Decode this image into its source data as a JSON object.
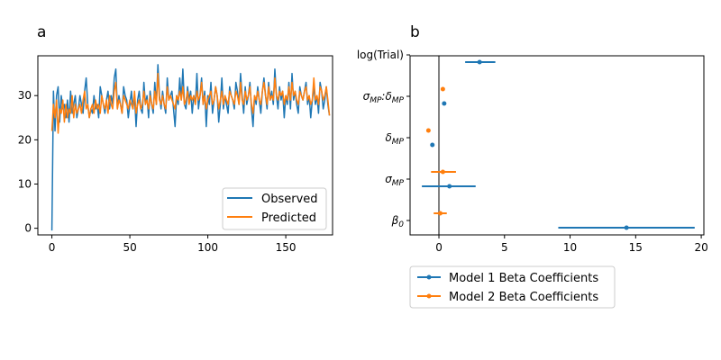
{
  "chart_data": [
    {
      "panel": "a",
      "type": "line",
      "title": "",
      "xlabel": "",
      "ylabel": "",
      "xlim": [
        -9,
        180
      ],
      "ylim": [
        -1.5,
        39
      ],
      "xticks": [
        0,
        50,
        100,
        150
      ],
      "yticks": [
        0,
        10,
        20,
        30
      ],
      "legend": {
        "position": "lower-right",
        "entries": [
          "Observed",
          "Predicted"
        ]
      },
      "series": [
        {
          "name": "Observed",
          "color": "#1f77b4",
          "x_start": 0,
          "values": [
            -0.5,
            31,
            22,
            30,
            32,
            24,
            30,
            27,
            28,
            25,
            29,
            24,
            31,
            26,
            28,
            30,
            25,
            27,
            30,
            28,
            26,
            31,
            34,
            28,
            25,
            27,
            26,
            30,
            27,
            28,
            25,
            32,
            30,
            28,
            26,
            29,
            31,
            27,
            30,
            28,
            34,
            36,
            27,
            30,
            28,
            26,
            32,
            30,
            29,
            25,
            28,
            31,
            27,
            30,
            23,
            29,
            31,
            27,
            26,
            33,
            28,
            30,
            25,
            31,
            28,
            26,
            33,
            28,
            37,
            30,
            27,
            31,
            28,
            26,
            34,
            29,
            30,
            31,
            27,
            23,
            30,
            28,
            34,
            29,
            36,
            28,
            27,
            32,
            29,
            31,
            26,
            30,
            28,
            35,
            27,
            30,
            34,
            28,
            31,
            23,
            30,
            28,
            33,
            26,
            29,
            32,
            30,
            24,
            28,
            34,
            27,
            30,
            28,
            26,
            32,
            30,
            29,
            27,
            33,
            31,
            28,
            35,
            30,
            26,
            32,
            28,
            30,
            33,
            27,
            23,
            30,
            28,
            32,
            29,
            26,
            31,
            34,
            30,
            27,
            33,
            29,
            31,
            28,
            36,
            30,
            27,
            32,
            29,
            31,
            25,
            30,
            28,
            33,
            27,
            35,
            29,
            31,
            28,
            26,
            32,
            30,
            29,
            31,
            33,
            28,
            30,
            25,
            29,
            32,
            28,
            30,
            26,
            33,
            31,
            27,
            29,
            32,
            28,
            25.5
          ]
        },
        {
          "name": "Predicted",
          "color": "#ff7f0e",
          "x_start": 0,
          "values": [
            22,
            28,
            25,
            29,
            21.5,
            27,
            26,
            29,
            24,
            28,
            25,
            27,
            26,
            30,
            25,
            28,
            26,
            27,
            28,
            26,
            29,
            31,
            27,
            28,
            25,
            27,
            28,
            26,
            29,
            27,
            28,
            26,
            30,
            28,
            27,
            29,
            26,
            30,
            28,
            27,
            31,
            33,
            27,
            29,
            28,
            26,
            30,
            29,
            28,
            27,
            29,
            28,
            27,
            31,
            26,
            28,
            29,
            27,
            28,
            31,
            28,
            29,
            27,
            30,
            28,
            27,
            31,
            28,
            35,
            29,
            28,
            30,
            28,
            27,
            32,
            29,
            30,
            29,
            28,
            27,
            30,
            29,
            31,
            29,
            32,
            28,
            29,
            31,
            28,
            30,
            29,
            30,
            28,
            31,
            29,
            30,
            33,
            28,
            30,
            27,
            29,
            30,
            31,
            28,
            29,
            32,
            30,
            27,
            29,
            31,
            28,
            30,
            29,
            28,
            31,
            30,
            29,
            28,
            31,
            30,
            28,
            33,
            29,
            28,
            31,
            29,
            30,
            32,
            28,
            26,
            30,
            29,
            31,
            29,
            28,
            31,
            33,
            30,
            28,
            32,
            29,
            30,
            29,
            34,
            30,
            29,
            31,
            30,
            31,
            28,
            30,
            29,
            32,
            29,
            33,
            30,
            31,
            29,
            28,
            31,
            30,
            29,
            31,
            32,
            29,
            30,
            28,
            29,
            34,
            29,
            30,
            28,
            32,
            31,
            29,
            30,
            32,
            29,
            25.5
          ]
        }
      ]
    },
    {
      "panel": "b",
      "type": "scatter",
      "subtype": "coefficient-plot",
      "title": "",
      "xlabel": "",
      "ylabel": "",
      "xlim": [
        -2.2,
        20.2
      ],
      "xticks": [
        0,
        5,
        10,
        15,
        20
      ],
      "categories": [
        "β0",
        "σMP",
        "δMP",
        "σMP:δMP",
        "log(Trial)"
      ],
      "reference_line_x": 0,
      "legend": {
        "position": "below",
        "entries": [
          "Model 1 Beta Coefficients",
          "Model 2 Beta Coefficients"
        ]
      },
      "series": [
        {
          "name": "Model 1 Beta Coefficients",
          "color": "#1f77b4",
          "points": [
            {
              "category": "β0",
              "estimate": 14.3,
              "ci": [
                9.1,
                19.5
              ]
            },
            {
              "category": "σMP",
              "estimate": 0.8,
              "ci": [
                -1.3,
                2.8
              ]
            },
            {
              "category": "δMP",
              "estimate": -0.5,
              "ci": [
                -0.6,
                -0.35
              ]
            },
            {
              "category": "σMP:δMP",
              "estimate": 0.4,
              "ci": [
                0.25,
                0.55
              ]
            },
            {
              "category": "log(Trial)",
              "estimate": 3.1,
              "ci": [
                2.0,
                4.3
              ]
            }
          ]
        },
        {
          "name": "Model 2 Beta Coefficients",
          "color": "#ff7f0e",
          "points": [
            {
              "category": "β0",
              "estimate": 0.1,
              "ci": [
                -0.4,
                0.6
              ]
            },
            {
              "category": "σMP",
              "estimate": 0.3,
              "ci": [
                -0.6,
                1.3
              ]
            },
            {
              "category": "δMP",
              "estimate": -0.8,
              "ci": [
                -0.85,
                -0.75
              ]
            },
            {
              "category": "σMP:δMP",
              "estimate": 0.3,
              "ci": [
                0.25,
                0.35
              ]
            },
            {
              "category": "log(Trial)",
              "estimate": null,
              "ci": null
            }
          ]
        }
      ]
    }
  ],
  "labels": {
    "panel_a": "a",
    "panel_b": "b"
  }
}
